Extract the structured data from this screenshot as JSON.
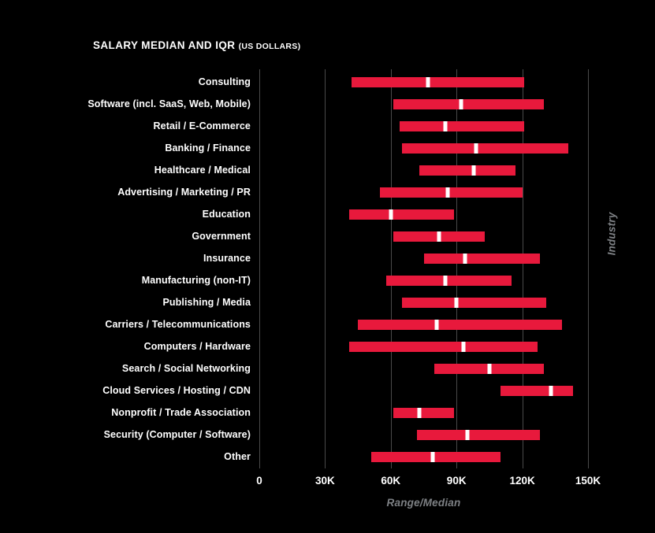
{
  "title": {
    "main": "SALARY MEDIAN AND IQR",
    "qualifier": "(US DOLLARS)"
  },
  "axis": {
    "x_label": "Range/Median",
    "y_label": "Industry"
  },
  "colors": {
    "background": "#000000",
    "bar": "#e8193c",
    "median_marker": "#ffffff",
    "gridline": "#4a4a4a",
    "tick_text": "#ffffff",
    "muted_text": "#7d8084"
  },
  "chart_data": {
    "type": "bar",
    "subtype": "horizontal-range-bars-with-median-marker",
    "title": "SALARY MEDIAN AND IQR (US DOLLARS)",
    "xlabel": "Range/Median",
    "ylabel": "Industry",
    "units": "USD, thousands",
    "xlim_k": [
      0,
      150
    ],
    "grid": true,
    "x_ticks": [
      {
        "value_k": 0,
        "label": "0"
      },
      {
        "value_k": 30,
        "label": "30K"
      },
      {
        "value_k": 60,
        "label": "60K"
      },
      {
        "value_k": 90,
        "label": "90K"
      },
      {
        "value_k": 120,
        "label": "120K"
      },
      {
        "value_k": 150,
        "label": "150K"
      }
    ],
    "rows": [
      {
        "label": "Consulting",
        "low_k": 42,
        "median_k": 77,
        "high_k": 121
      },
      {
        "label": "Software (incl. SaaS, Web, Mobile)",
        "low_k": 61,
        "median_k": 92,
        "high_k": 130
      },
      {
        "label": "Retail / E-Commerce",
        "low_k": 64,
        "median_k": 85,
        "high_k": 121
      },
      {
        "label": "Banking / Finance",
        "low_k": 65,
        "median_k": 99,
        "high_k": 141
      },
      {
        "label": "Healthcare / Medical",
        "low_k": 73,
        "median_k": 98,
        "high_k": 117
      },
      {
        "label": "Advertising / Marketing / PR",
        "low_k": 55,
        "median_k": 86,
        "high_k": 120
      },
      {
        "label": "Education",
        "low_k": 41,
        "median_k": 60,
        "high_k": 89
      },
      {
        "label": "Government",
        "low_k": 61,
        "median_k": 82,
        "high_k": 103
      },
      {
        "label": "Insurance",
        "low_k": 75,
        "median_k": 94,
        "high_k": 128
      },
      {
        "label": "Manufacturing (non-IT)",
        "low_k": 58,
        "median_k": 85,
        "high_k": 115
      },
      {
        "label": "Publishing / Media",
        "low_k": 65,
        "median_k": 90,
        "high_k": 131
      },
      {
        "label": "Carriers / Telecommunications",
        "low_k": 45,
        "median_k": 81,
        "high_k": 138
      },
      {
        "label": "Computers / Hardware",
        "low_k": 41,
        "median_k": 93,
        "high_k": 127
      },
      {
        "label": "Search / Social Networking",
        "low_k": 80,
        "median_k": 105,
        "high_k": 130
      },
      {
        "label": "Cloud Services / Hosting / CDN",
        "low_k": 110,
        "median_k": 133,
        "high_k": 143
      },
      {
        "label": "Nonprofit / Trade Association",
        "low_k": 61,
        "median_k": 73,
        "high_k": 89
      },
      {
        "label": "Security (Computer / Software)",
        "low_k": 72,
        "median_k": 95,
        "high_k": 128
      },
      {
        "label": "Other",
        "low_k": 51,
        "median_k": 79,
        "high_k": 110
      }
    ]
  }
}
